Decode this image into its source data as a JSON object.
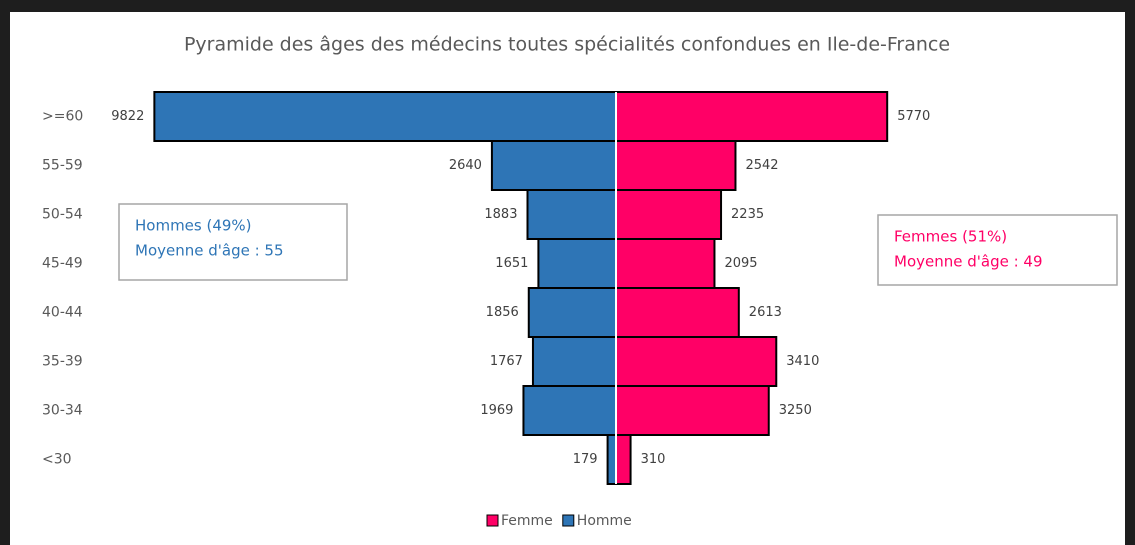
{
  "chart_data": {
    "type": "pyramid",
    "title": "Pyramide des âges des médecins toutes spécialités confondues en Ile-de-France",
    "categories": [
      ">=60",
      "55-59",
      "50-54",
      "45-49",
      "40-44",
      "35-39",
      "30-34",
      "<30"
    ],
    "series": [
      {
        "name": "Homme",
        "color": "#2e75b6",
        "values": [
          9822,
          2640,
          1883,
          1651,
          1856,
          1767,
          1969,
          179
        ]
      },
      {
        "name": "Femme",
        "color": "#ff0066",
        "values": [
          5770,
          2542,
          2235,
          2095,
          2613,
          3410,
          3250,
          310
        ]
      }
    ],
    "legend_order": [
      "Femme",
      "Homme"
    ],
    "xlim": [
      -10000,
      10000
    ],
    "annotations": [
      {
        "lines": [
          "Hommes (49%)",
          "Moyenne d'âge : 55"
        ],
        "color": "#2e75b6"
      },
      {
        "lines": [
          "Femmes (51%)",
          "Moyenne d'âge : 49"
        ],
        "color": "#ff0066"
      }
    ]
  }
}
